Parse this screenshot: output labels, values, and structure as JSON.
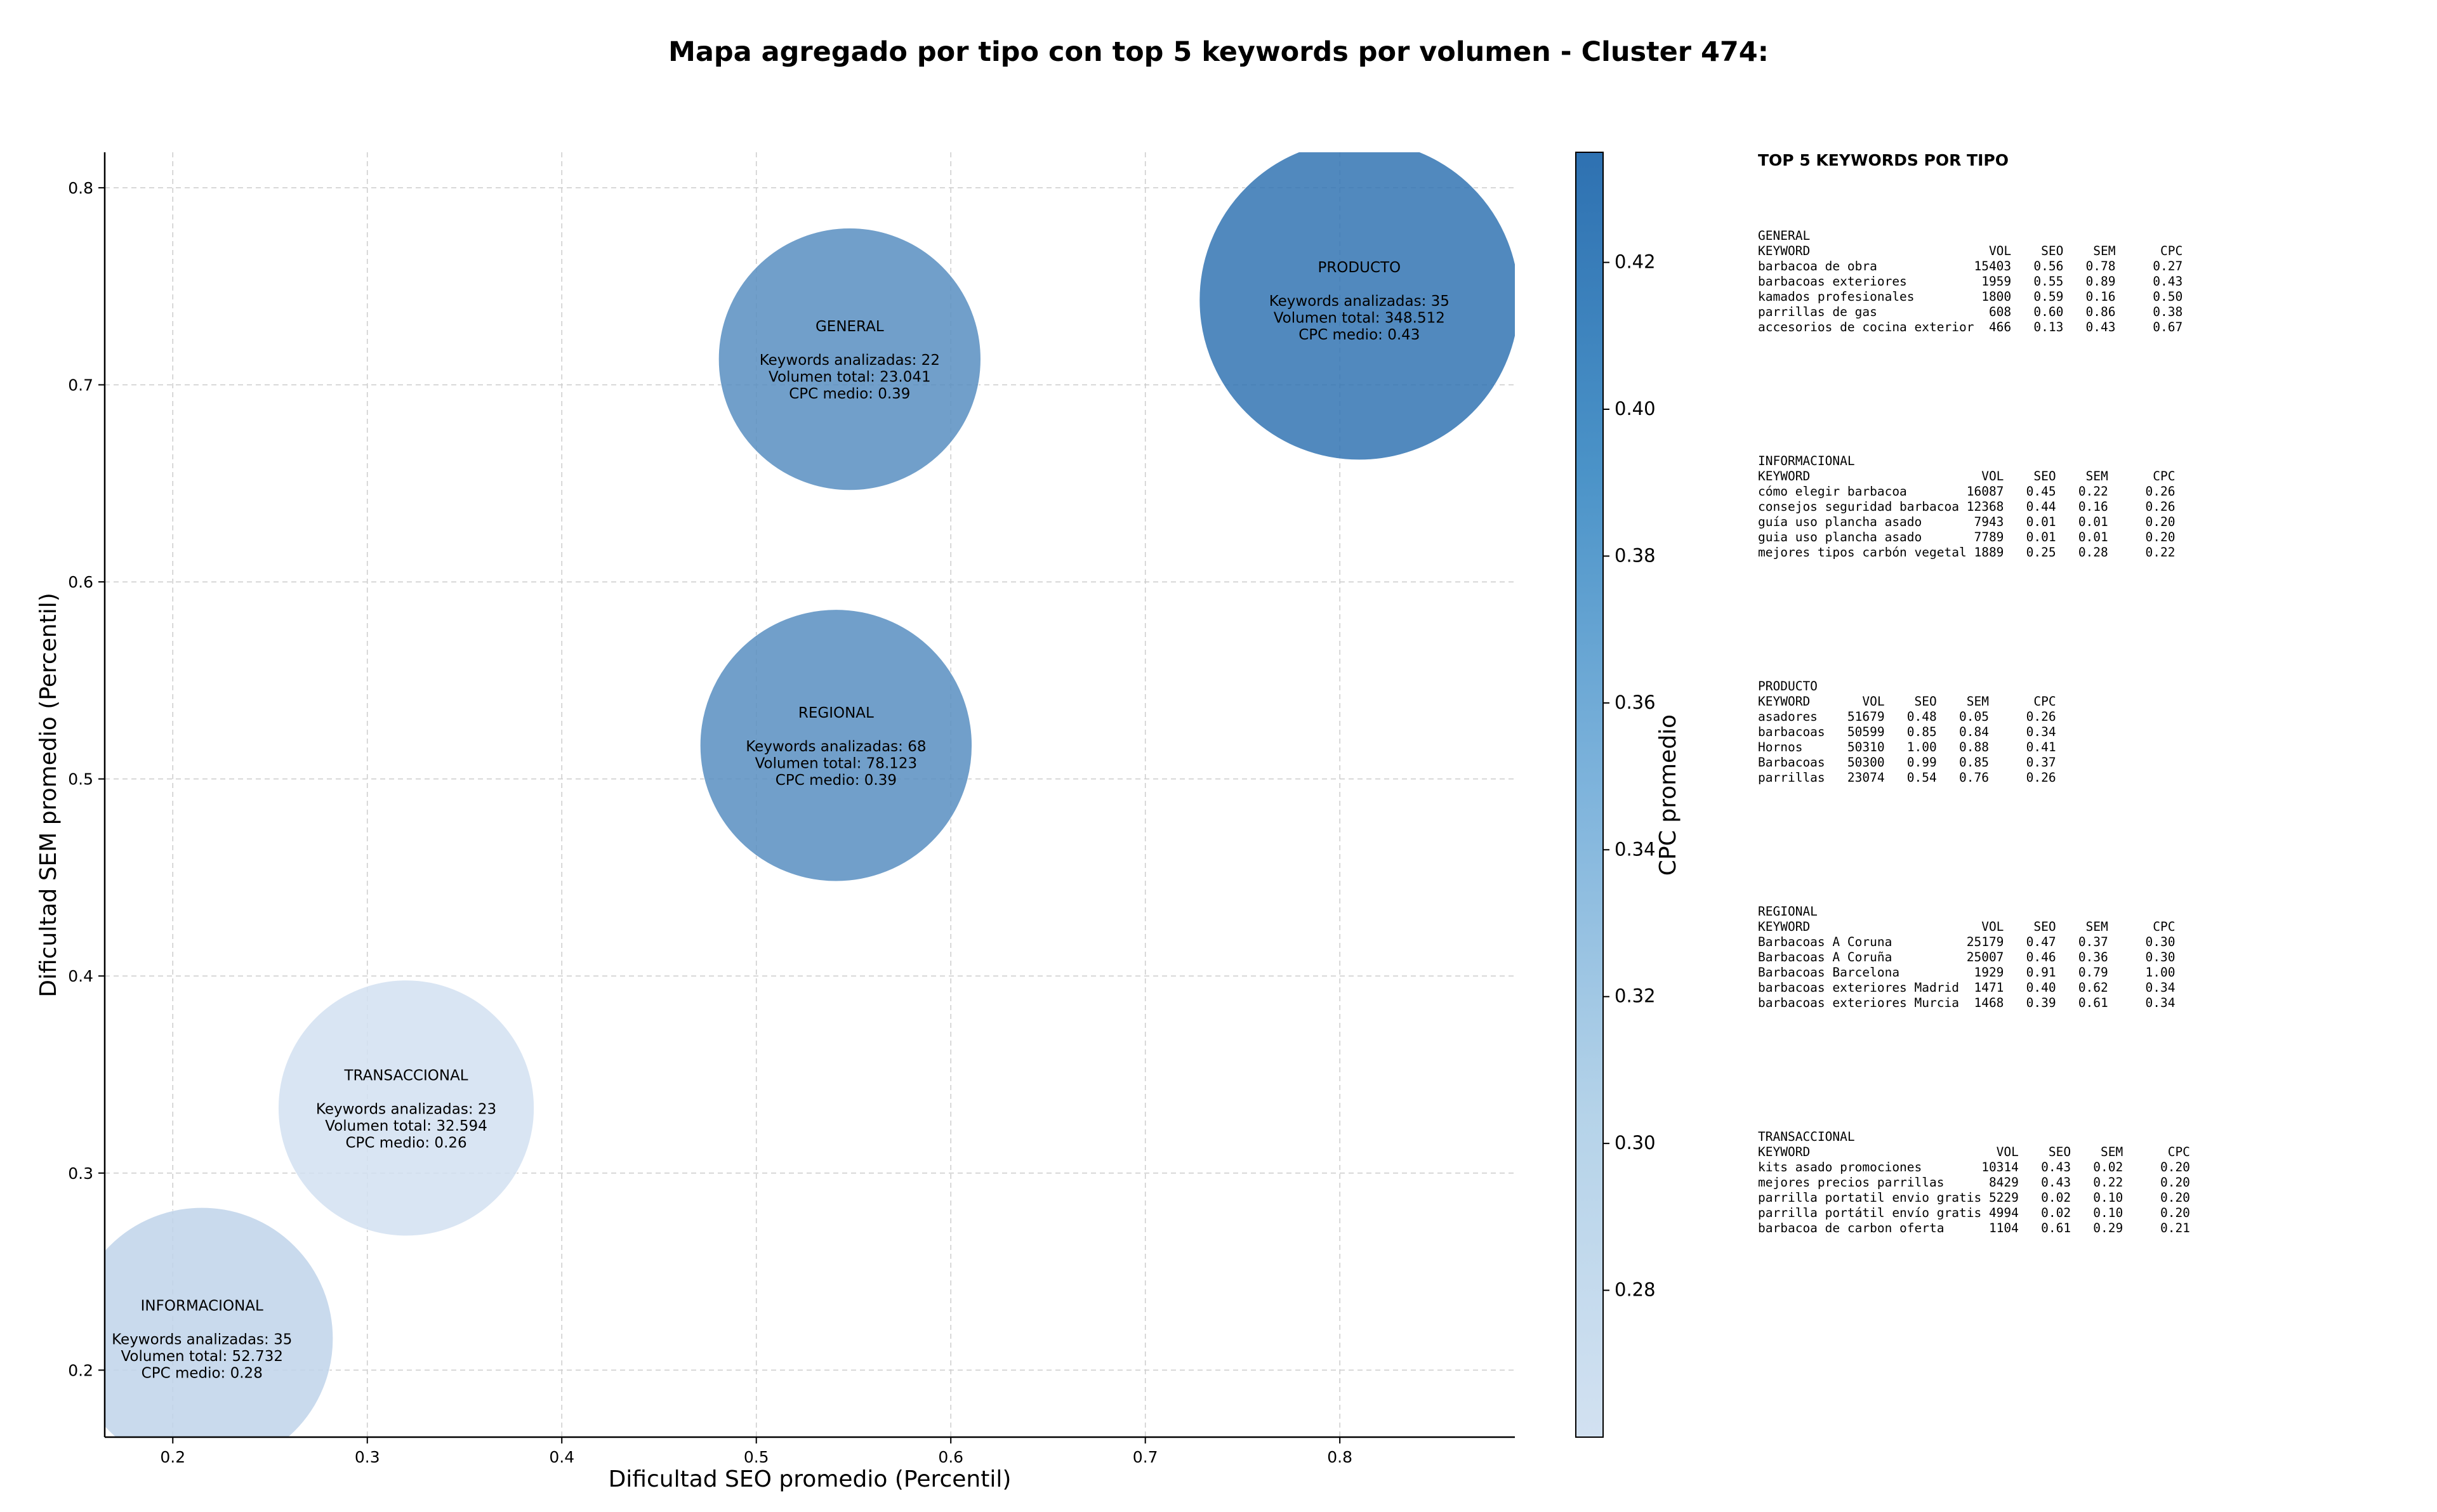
{
  "title": "Mapa agregado por tipo con top 5 keywords por volumen - Cluster 474:",
  "colors": {
    "low": "#d2e1f1",
    "high": "#2e71b1",
    "text": "#000000",
    "grid": "#cccccc"
  },
  "chart_data": {
    "type": "scatter",
    "variant": "bubble",
    "xlabel": "Dificultad SEO promedio (Percentil)",
    "ylabel": "Dificultad SEM promedio (Percentil)",
    "xlim": [
      0.165,
      0.89
    ],
    "ylim": [
      0.166,
      0.818
    ],
    "xticks": [
      0.2,
      0.3,
      0.4,
      0.5,
      0.6,
      0.7,
      0.8
    ],
    "yticks": [
      0.2,
      0.3,
      0.4,
      0.5,
      0.6,
      0.7,
      0.8
    ],
    "grid": true,
    "colorbar": {
      "label": "CPC promedio",
      "range": [
        0.26,
        0.435
      ],
      "ticks": [
        0.28,
        0.3,
        0.32,
        0.34,
        0.36,
        0.38,
        0.4,
        0.42
      ]
    },
    "points": [
      {
        "name": "GENERAL",
        "x": 0.548,
        "y": 0.713,
        "keywords": 22,
        "volume": 23041,
        "cpc": 0.39,
        "size_rel": 0.82,
        "lines": [
          "GENERAL",
          "",
          "Keywords analizadas: 22",
          "Volumen total: 23.041",
          "CPC medio: 0.39"
        ]
      },
      {
        "name": "PRODUCTO",
        "x": 0.81,
        "y": 0.743,
        "keywords": 35,
        "volume": 348512,
        "cpc": 0.43,
        "size_rel": 1.0,
        "lines": [
          "PRODUCTO",
          "",
          "Keywords analizadas: 35",
          "Volumen total: 348.512",
          "CPC medio: 0.43"
        ]
      },
      {
        "name": "REGIONAL",
        "x": 0.541,
        "y": 0.517,
        "keywords": 68,
        "volume": 78123,
        "cpc": 0.39,
        "size_rel": 0.85,
        "lines": [
          "REGIONAL",
          "",
          "Keywords analizadas: 68",
          "Volumen total: 78.123",
          "CPC medio: 0.39"
        ]
      },
      {
        "name": "TRANSACCIONAL",
        "x": 0.32,
        "y": 0.333,
        "keywords": 23,
        "volume": 32594,
        "cpc": 0.26,
        "size_rel": 0.8,
        "lines": [
          "TRANSACCIONAL",
          "",
          "Keywords analizadas: 23",
          "Volumen total: 32.594",
          "CPC medio: 0.26"
        ]
      },
      {
        "name": "INFORMACIONAL",
        "x": 0.215,
        "y": 0.216,
        "keywords": 35,
        "volume": 52732,
        "cpc": 0.28,
        "size_rel": 0.82,
        "lines": [
          "INFORMACIONAL",
          "",
          "Keywords analizadas: 35",
          "Volumen total: 52.732",
          "CPC medio: 0.28"
        ]
      }
    ]
  },
  "keywords_panel": {
    "title": "TOP 5 KEYWORDS POR TIPO",
    "blocks": [
      {
        "type": "GENERAL",
        "text": "GENERAL\nKEYWORD                        VOL    SEO    SEM      CPC\nbarbacoa de obra             15403   0.56   0.78     0.27\nbarbacoas exteriores          1959   0.55   0.89     0.43\nkamados profesionales         1800   0.59   0.16     0.50\nparrillas de gas               608   0.60   0.86     0.38\naccesorios de cocina exterior  466   0.13   0.43     0.67"
      },
      {
        "type": "INFORMACIONAL",
        "text": "INFORMACIONAL\nKEYWORD                       VOL    SEO    SEM      CPC\ncómo elegir barbacoa        16087   0.45   0.22     0.26\nconsejos seguridad barbacoa 12368   0.44   0.16     0.26\nguía uso plancha asado       7943   0.01   0.01     0.20\nguia uso plancha asado       7789   0.01   0.01     0.20\nmejores tipos carbón vegetal 1889   0.25   0.28     0.22"
      },
      {
        "type": "PRODUCTO",
        "text": "PRODUCTO\nKEYWORD       VOL    SEO    SEM      CPC\nasadores    51679   0.48   0.05     0.26\nbarbacoas   50599   0.85   0.84     0.34\nHornos      50310   1.00   0.88     0.41\nBarbacoas   50300   0.99   0.85     0.37\nparrillas   23074   0.54   0.76     0.26"
      },
      {
        "type": "REGIONAL",
        "text": "REGIONAL\nKEYWORD                       VOL    SEO    SEM      CPC\nBarbacoas A Coruna          25179   0.47   0.37     0.30\nBarbacoas A Coruña          25007   0.46   0.36     0.30\nBarbacoas Barcelona          1929   0.91   0.79     1.00\nbarbacoas exteriores Madrid  1471   0.40   0.62     0.34\nbarbacoas exteriores Murcia  1468   0.39   0.61     0.34"
      },
      {
        "type": "TRANSACCIONAL",
        "text": "TRANSACCIONAL\nKEYWORD                         VOL    SEO    SEM      CPC\nkits asado promociones        10314   0.43   0.02     0.20\nmejores precios parrillas      8429   0.43   0.22     0.20\nparrilla portatil envio gratis 5229   0.02   0.10     0.20\nparrilla portátil envío gratis 4994   0.02   0.10     0.20\nbarbacoa de carbon oferta      1104   0.61   0.29     0.21"
      }
    ]
  }
}
